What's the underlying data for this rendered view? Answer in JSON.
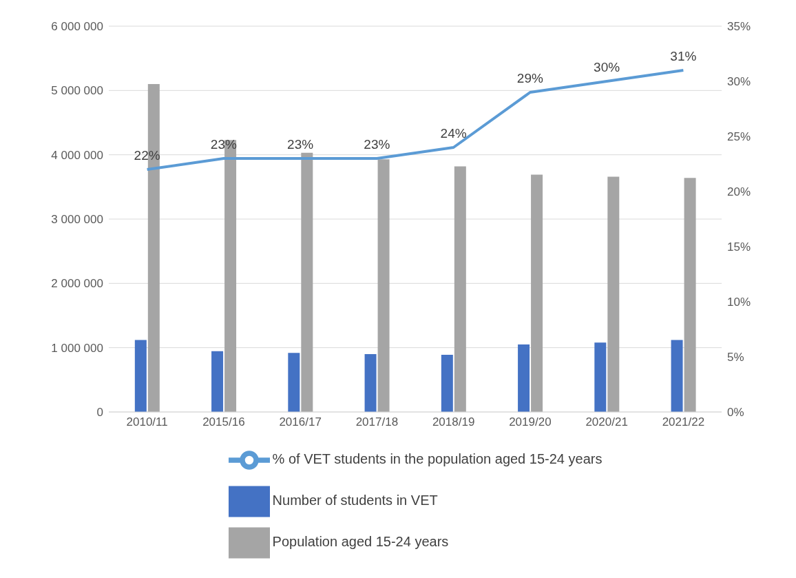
{
  "chart_data": {
    "type": "bar",
    "categories": [
      "2010/11",
      "2015/16",
      "2016/17",
      "2017/18",
      "2018/19",
      "2019/20",
      "2020/21",
      "2021/22"
    ],
    "series": [
      {
        "name": "Number of students in VET",
        "color": "#4472c4",
        "values": [
          1120000,
          945000,
          920000,
          900000,
          890000,
          1050000,
          1080000,
          1120000
        ]
      },
      {
        "name": "Population aged 15-24 years",
        "color": "#a5a5a5",
        "values": [
          5100000,
          4230000,
          4030000,
          3930000,
          3820000,
          3690000,
          3660000,
          3640000
        ]
      },
      {
        "name": "% of VET students in the population aged 15-24 years",
        "type": "line",
        "axis": "y2",
        "color": "#5b9bd5",
        "marker": "none",
        "values": [
          22,
          23,
          23,
          23,
          24,
          29,
          30,
          31
        ],
        "value_labels": [
          "22%",
          "23%",
          "23%",
          "23%",
          "24%",
          "29%",
          "30%",
          "31%"
        ]
      }
    ],
    "ylim": [
      0,
      6000000
    ],
    "yticks": [
      {
        "value": 0,
        "label": "0"
      },
      {
        "value": 1000000,
        "label": "1 000 000"
      },
      {
        "value": 2000000,
        "label": "2 000 000"
      },
      {
        "value": 3000000,
        "label": "3 000 000"
      },
      {
        "value": 4000000,
        "label": "4 000 000"
      },
      {
        "value": 5000000,
        "label": "5 000 000"
      },
      {
        "value": 6000000,
        "label": "6 000 000"
      }
    ],
    "y2lim": [
      0,
      35
    ],
    "y2ticks": [
      {
        "value": 0,
        "label": "0%"
      },
      {
        "value": 5,
        "label": "5%"
      },
      {
        "value": 10,
        "label": "10%"
      },
      {
        "value": 15,
        "label": "15%"
      },
      {
        "value": 20,
        "label": "20%"
      },
      {
        "value": 25,
        "label": "25%"
      },
      {
        "value": 30,
        "label": "30%"
      },
      {
        "value": 35,
        "label": "35%"
      }
    ],
    "grid": "y",
    "legend": "bottom"
  }
}
